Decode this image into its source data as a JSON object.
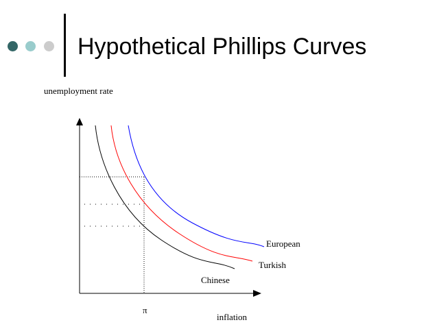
{
  "slide": {
    "title": "Hypothetical Phillips Curves",
    "bullet_colors": [
      "#336666",
      "#99cccc",
      "#cccccc"
    ]
  },
  "diagram": {
    "y_axis_label": "unemployment rate",
    "x_axis_label": "inflation",
    "x_marker_label": "π",
    "curves": [
      {
        "name": "European",
        "color": "#0000ff"
      },
      {
        "name": "Turkish",
        "color": "#ff0000"
      },
      {
        "name": "Chinese",
        "color": "#000000"
      }
    ]
  }
}
